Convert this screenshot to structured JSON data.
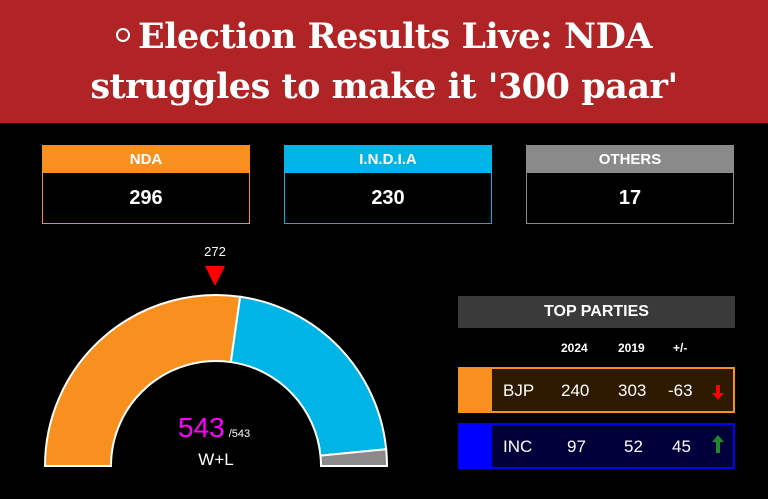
{
  "headline": {
    "line1": "Election Results Live: NDA",
    "line2": "struggles to make it '300 paar'"
  },
  "alliances": [
    {
      "name": "NDA",
      "seats": "296",
      "color": "#f7901e"
    },
    {
      "name": "I.N.D.I.A",
      "seats": "230",
      "color": "#00b4e6"
    },
    {
      "name": "OTHERS",
      "seats": "17",
      "color": "#8a8a8a"
    }
  ],
  "gauge": {
    "majority_mark": "272",
    "total_declared": "543",
    "total_seats": "/543",
    "label": "W+L",
    "segments": [
      {
        "name": "NDA",
        "value": 296,
        "color": "#f7901e"
      },
      {
        "name": "I.N.D.I.A",
        "value": 230,
        "color": "#00b4e6"
      },
      {
        "name": "OTHERS",
        "value": 17,
        "color": "#8a8a8a"
      }
    ]
  },
  "top_parties": {
    "title": "TOP PARTIES",
    "columns": [
      "2024",
      "2019",
      "+/-"
    ],
    "rows": [
      {
        "party": "BJP",
        "y2024": "240",
        "y2019": "303",
        "change": "-63",
        "trend": "down",
        "color": "#f7901e",
        "bg": "#2d1a00"
      },
      {
        "party": "INC",
        "y2024": "97",
        "y2019": "52",
        "change": "45",
        "trend": "up",
        "color": "#0000ff",
        "bg": "#00003a"
      }
    ]
  }
}
